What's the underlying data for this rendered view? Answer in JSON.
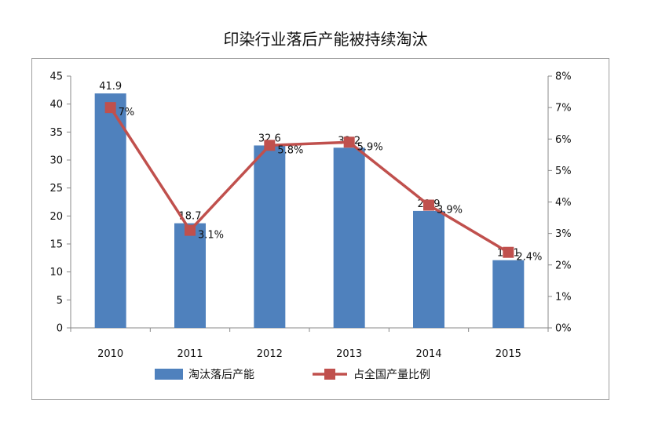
{
  "chart_data": {
    "type": "bar",
    "title": "印染行业落后产能被持续淘汰",
    "categories": [
      "2010",
      "2011",
      "2012",
      "2013",
      "2014",
      "2015"
    ],
    "series": [
      {
        "name": "淘汰落后产能",
        "type": "bar",
        "axis": "left",
        "values": [
          41.9,
          18.7,
          32.6,
          32.2,
          20.9,
          12.1
        ],
        "labels": [
          "41.9",
          "18.7",
          "32.6",
          "32.2",
          "20.9",
          "12.1"
        ],
        "color": "#4f81bd"
      },
      {
        "name": "占全国产量比例",
        "type": "line",
        "axis": "right",
        "values": [
          7.0,
          3.1,
          5.8,
          5.9,
          3.9,
          2.4
        ],
        "labels": [
          "7%",
          "3.1%",
          "5.8%",
          "5.9%",
          "3.9%",
          "2.4%"
        ],
        "color": "#c0504d"
      }
    ],
    "y_left": {
      "ylim": [
        0,
        45
      ],
      "ticks": [
        "0",
        "5",
        "10",
        "15",
        "20",
        "25",
        "30",
        "35",
        "40",
        "45"
      ]
    },
    "y_right": {
      "ylim": [
        0,
        8
      ],
      "ticks": [
        "0%",
        "1%",
        "2%",
        "3%",
        "4%",
        "5%",
        "6%",
        "7%",
        "8%"
      ]
    },
    "grid": false,
    "legend": "bottom"
  }
}
